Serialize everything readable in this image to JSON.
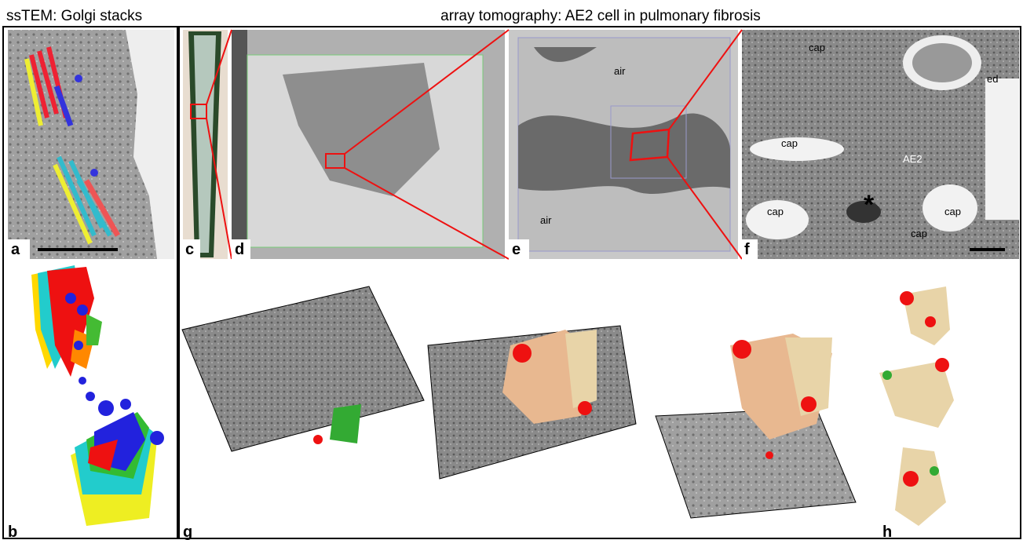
{
  "headers": {
    "left": "ssTEM: Golgi stacks",
    "right": "array tomography: AE2 cell in pulmonary fibrosis"
  },
  "panels": [
    {
      "label": "a"
    },
    {
      "label": "b"
    },
    {
      "label": "c"
    },
    {
      "label": "d"
    },
    {
      "label": "e"
    },
    {
      "label": "f"
    },
    {
      "label": "g"
    },
    {
      "label": "h"
    }
  ],
  "annotations": {
    "e": [
      "air",
      "air"
    ],
    "f": [
      "cap",
      "ed",
      "cap",
      "AE2",
      "cap",
      "cap",
      "cap",
      "*"
    ]
  }
}
